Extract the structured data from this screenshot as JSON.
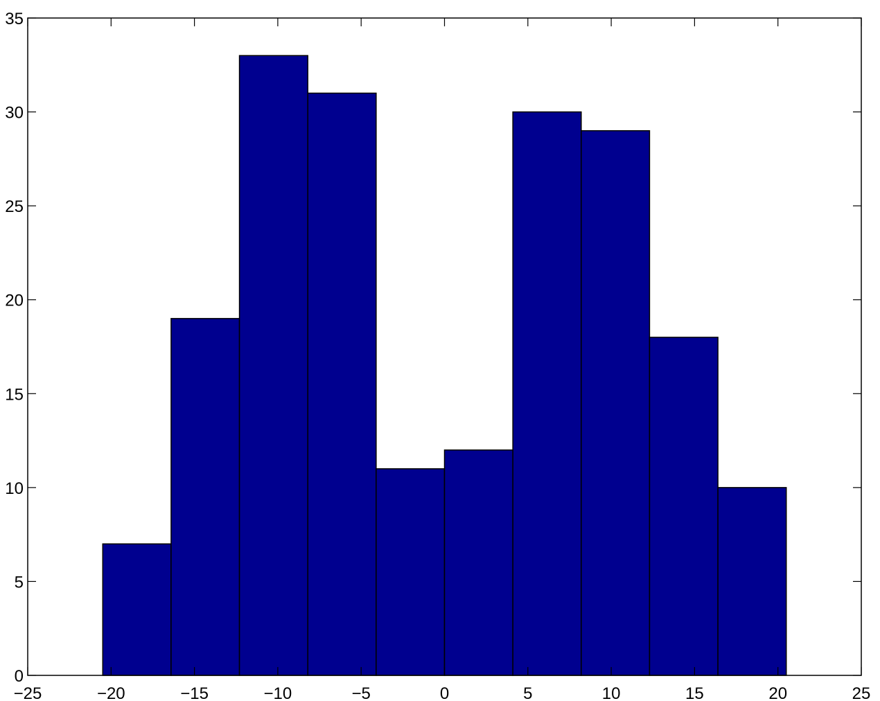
{
  "chart_data": {
    "type": "bar",
    "title": "",
    "xlabel": "",
    "ylabel": "",
    "bin_edges": [
      -20.5,
      -16.4,
      -12.3,
      -8.2,
      -4.1,
      0.0,
      4.1,
      8.2,
      12.3,
      16.4,
      20.5
    ],
    "values": [
      7,
      19,
      33,
      31,
      11,
      12,
      30,
      29,
      18,
      10
    ],
    "xlim": [
      -25,
      25
    ],
    "ylim": [
      0,
      35
    ],
    "xticks": [
      -25,
      -20,
      -15,
      -10,
      -5,
      0,
      5,
      10,
      15,
      20,
      25
    ],
    "xtick_labels": [
      "−25",
      "−20",
      "−15",
      "−10",
      "−5",
      "0",
      "5",
      "10",
      "15",
      "20",
      "25"
    ],
    "yticks": [
      0,
      5,
      10,
      15,
      20,
      25,
      30,
      35
    ],
    "ytick_labels": [
      "0",
      "5",
      "10",
      "15",
      "20",
      "25",
      "30",
      "35"
    ],
    "grid": false,
    "bar_color": "#00008f",
    "edge_color": "#000000"
  }
}
